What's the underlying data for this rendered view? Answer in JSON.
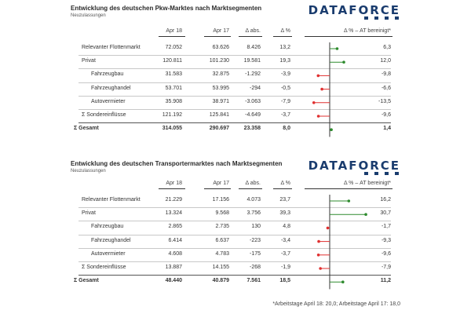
{
  "panels": [
    {
      "title": "Entwicklung des deutschen Pkw-Marktes nach Marktsegmenten",
      "subtitle": "Neuzulassungen",
      "logo": "DATAFORCE",
      "headers": {
        "vl": "Apr 18",
        "pl": "Apr 17",
        "ab": "Δ abs.",
        "pc": "Δ %",
        "at": "Δ % – AT bereinigt*"
      },
      "rows": [
        {
          "label": "Relevanter Flottenmarkt",
          "vl": "72.052",
          "pl": "63.626",
          "ab": "8.426",
          "pc": "13,2",
          "at": "6,3",
          "val": 6.3,
          "kind": "main"
        },
        {
          "label": "Privat",
          "vl": "120.811",
          "pl": "101.230",
          "ab": "19.581",
          "pc": "19,3",
          "at": "12,0",
          "val": 12.0,
          "kind": "main"
        },
        {
          "label": "Fahrzeugbau",
          "vl": "31.583",
          "pl": "32.875",
          "ab": "-1.292",
          "pc": "-3,9",
          "at": "-9,8",
          "val": -9.8,
          "kind": "sub"
        },
        {
          "label": "Fahrzeughandel",
          "vl": "53.701",
          "pl": "53.995",
          "ab": "-294",
          "pc": "-0,5",
          "at": "-6,6",
          "val": -6.6,
          "kind": "sub"
        },
        {
          "label": "Autovermieter",
          "vl": "35.908",
          "pl": "38.971",
          "ab": "-3.063",
          "pc": "-7,9",
          "at": "-13,5",
          "val": -13.5,
          "kind": "sub"
        },
        {
          "label": "Σ Sondereinflüsse",
          "vl": "121.192",
          "pl": "125.841",
          "ab": "-4.649",
          "pc": "-3,7",
          "at": "-9,6",
          "val": -9.6,
          "kind": "main"
        },
        {
          "label": "Σ Gesamt",
          "vl": "314.055",
          "pl": "290.697",
          "ab": "23.358",
          "pc": "8,0",
          "at": "1,4",
          "val": 1.4,
          "kind": "total"
        }
      ]
    },
    {
      "title": "Entwicklung des deutschen Transportermarktes nach Marktsegmenten",
      "subtitle": "Neuzulassungen",
      "logo": "DATAFORCE",
      "headers": {
        "vl": "Apr 18",
        "pl": "Apr 17",
        "ab": "Δ abs.",
        "pc": "Δ %",
        "at": "Δ % – AT bereinigt*"
      },
      "rows": [
        {
          "label": "Relevanter Flottenmarkt",
          "vl": "21.229",
          "pl": "17.156",
          "ab": "4.073",
          "pc": "23,7",
          "at": "16,2",
          "val": 16.2,
          "kind": "main"
        },
        {
          "label": "Privat",
          "vl": "13.324",
          "pl": "9.568",
          "ab": "3.756",
          "pc": "39,3",
          "at": "30,7",
          "val": 30.7,
          "kind": "main"
        },
        {
          "label": "Fahrzeugbau",
          "vl": "2.865",
          "pl": "2.735",
          "ab": "130",
          "pc": "4,8",
          "at": "-1,7",
          "val": -1.7,
          "kind": "sub"
        },
        {
          "label": "Fahrzeughandel",
          "vl": "6.414",
          "pl": "6.637",
          "ab": "-223",
          "pc": "-3,4",
          "at": "-9,3",
          "val": -9.3,
          "kind": "sub"
        },
        {
          "label": "Autovermieter",
          "vl": "4.608",
          "pl": "4.783",
          "ab": "-175",
          "pc": "-3,7",
          "at": "-9,6",
          "val": -9.6,
          "kind": "sub"
        },
        {
          "label": "Σ Sondereinflüsse",
          "vl": "13.887",
          "pl": "14.155",
          "ab": "-268",
          "pc": "-1,9",
          "at": "-7,9",
          "val": -7.9,
          "kind": "main"
        },
        {
          "label": "Σ Gesamt",
          "vl": "48.440",
          "pl": "40.879",
          "ab": "7.561",
          "pc": "18,5",
          "at": "11,2",
          "val": 11.2,
          "kind": "total"
        }
      ]
    }
  ],
  "footnote": "*Arbeitstage April 18: 20,0; Arbeitstage April 17: 18,0",
  "colors": {
    "positive": "#2e8b2e",
    "negative": "#e03030",
    "logo": "#1a3c6e"
  }
}
